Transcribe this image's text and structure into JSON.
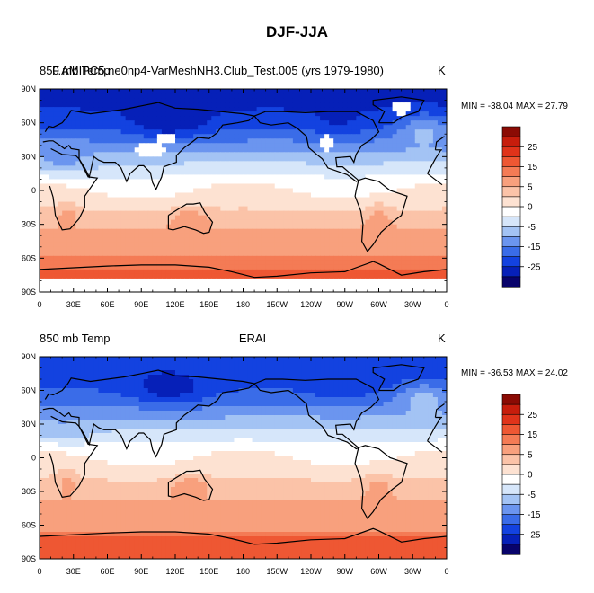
{
  "title": "DJF-JJA",
  "colorbar_levels": [
    "25",
    "15",
    "5",
    "0",
    "-5",
    "-15",
    "-25"
  ],
  "colors": [
    "#08036b",
    "#0620b8",
    "#1342e0",
    "#3a6ce8",
    "#6b95ef",
    "#a3c3f4",
    "#d6e6fa",
    "#ffffff",
    "#fde2d2",
    "#fbc3a8",
    "#f8a07d",
    "#f47b55",
    "#ee5733",
    "#e0331a",
    "#c71d0c",
    "#8b0b04"
  ],
  "chart_data": [
    {
      "type": "heatmap",
      "variable": "850 mb Temp",
      "units": "K",
      "left_title": "850 mb Temp",
      "case_title": "F.AMIPC5.ne0np4-VarMeshNH3.Club_Test.005 (yrs 1979-1980)",
      "right_title": "K",
      "min_max_text": "MIN = -38.04 MAX =  27.79",
      "min": -38.04,
      "max": 27.79,
      "x_ticks": [
        "0",
        "30E",
        "60E",
        "90E",
        "120E",
        "150E",
        "180",
        "150W",
        "120W",
        "90W",
        "60W",
        "30W",
        "0"
      ],
      "y_ticks": [
        "90N",
        "60N",
        "30N",
        "0",
        "30S",
        "60S",
        "90S"
      ],
      "xlim": [
        0,
        360
      ],
      "ylim": [
        -90,
        90
      ],
      "contour_levels": [
        -35,
        -30,
        -25,
        -20,
        -15,
        -10,
        -5,
        0,
        5,
        10,
        15,
        20,
        25,
        30
      ],
      "missing_data_regions": true
    },
    {
      "type": "heatmap",
      "variable": "850 mb Temp",
      "units": "K",
      "left_title": "850 mb Temp",
      "case_title": "ERAI",
      "right_title": "K",
      "min_max_text": "MIN = -36.53 MAX =  24.02",
      "min": -36.53,
      "max": 24.02,
      "x_ticks": [
        "0",
        "30E",
        "60E",
        "90E",
        "120E",
        "150E",
        "180",
        "150W",
        "120W",
        "90W",
        "60W",
        "30W",
        "0"
      ],
      "y_ticks": [
        "90N",
        "60N",
        "30N",
        "0",
        "30S",
        "60S",
        "90S"
      ],
      "xlim": [
        0,
        360
      ],
      "ylim": [
        -90,
        90
      ],
      "contour_levels": [
        -35,
        -30,
        -25,
        -20,
        -15,
        -10,
        -5,
        0,
        5,
        10,
        15,
        20,
        25,
        30
      ],
      "missing_data_regions": false
    }
  ]
}
